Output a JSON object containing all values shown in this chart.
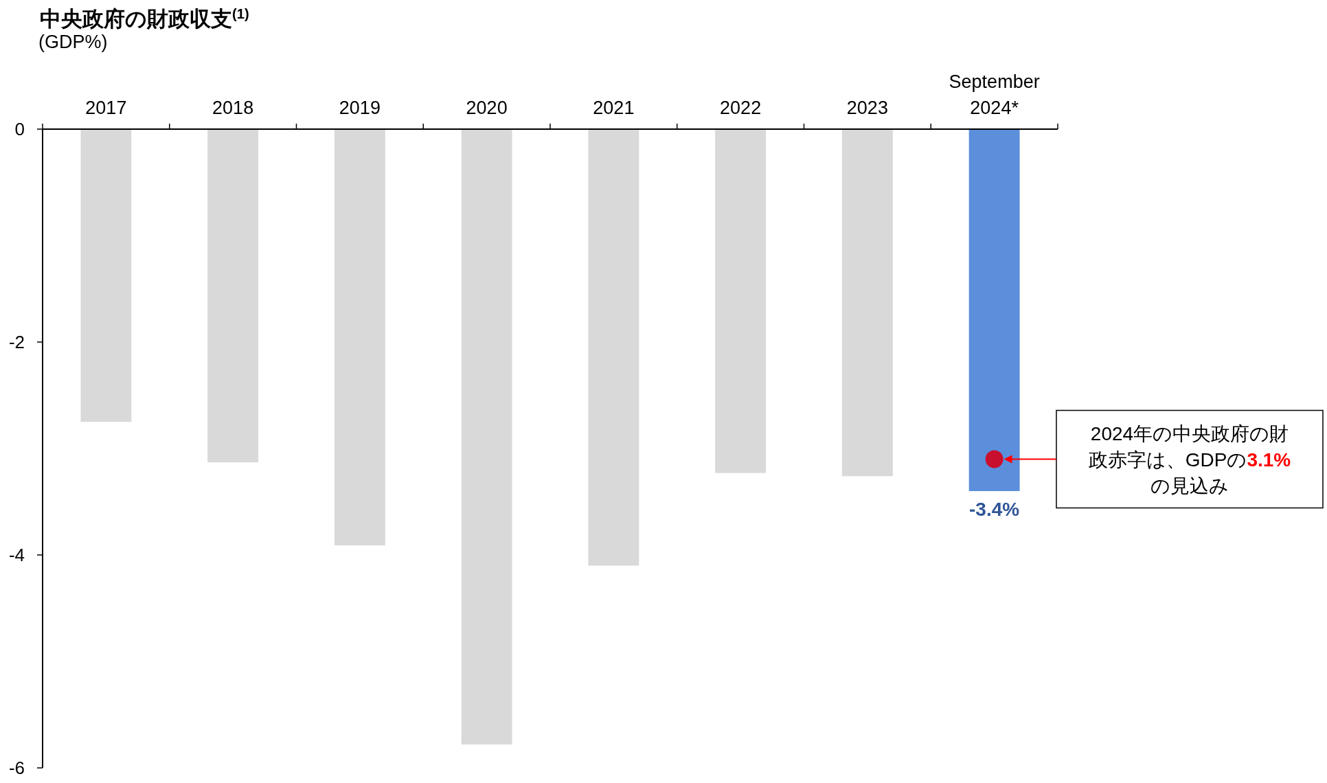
{
  "chart_data": {
    "type": "bar",
    "title": "中央政府の財政収支$^{(1)}$",
    "subtitle": "(GDP%)",
    "categories": [
      "2017",
      "2018",
      "2019",
      "2020",
      "2021",
      "2022",
      "2023",
      "September 2024*"
    ],
    "ylim": [
      -6,
      0
    ],
    "yticks": [
      0,
      -2,
      -4,
      -6
    ],
    "grid": false,
    "series": [
      {
        "colors": [
          "#d9d9d9",
          "#d9d9d9",
          "#d9d9d9",
          "#d9d9d9",
          "#d9d9d9",
          "#d9d9d9",
          "#d9d9d9",
          "#5b8fdc"
        ],
        "values": [
          -2.75,
          -3.13,
          -3.91,
          -5.78,
          -4.1,
          -3.23,
          -3.26,
          -3.4
        ],
        "value_labels": [
          null,
          null,
          null,
          null,
          null,
          null,
          null,
          "-3.4%"
        ]
      },
      {
        "type": "scatter",
        "x": [
          "September 2024*"
        ],
        "values": [
          -3.1
        ],
        "color": "#c8102e"
      }
    ],
    "annotations": [
      "2024年の中央政府の財政赤字は、GDPの3.1%の見込み"
    ]
  }
}
